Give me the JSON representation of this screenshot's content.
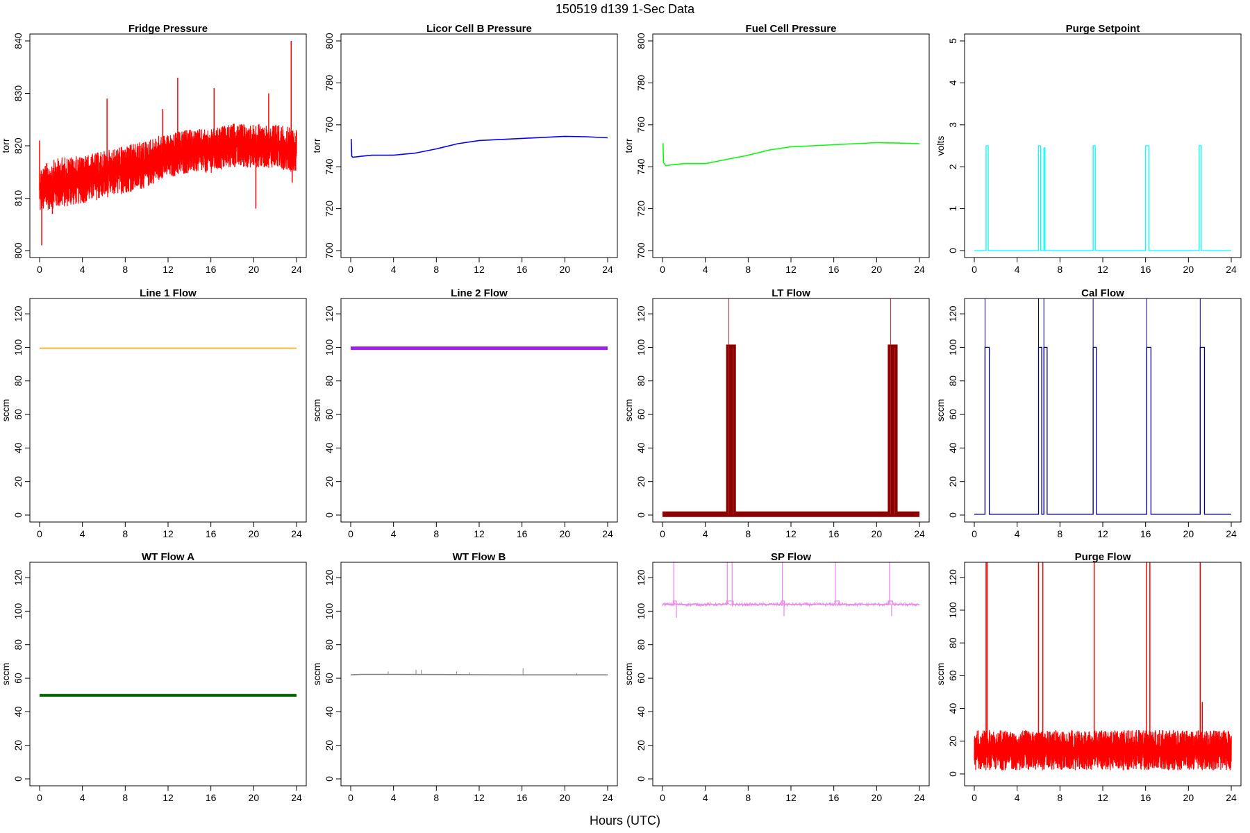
{
  "title": "150519   d139   1-Sec Data",
  "x_axis_label": "Hours (UTC)",
  "chart_data": [
    {
      "type": "line",
      "title": "Fridge Pressure",
      "ylabel": "torr",
      "color": "#ff0000",
      "xlim": [
        0,
        24
      ],
      "ylim": [
        800,
        840
      ],
      "yticks": [
        800,
        810,
        820,
        830,
        840
      ],
      "xticks": [
        0,
        4,
        8,
        12,
        16,
        20,
        24
      ],
      "series": [
        {
          "kind": "noisy_band",
          "x": [
            0,
            1,
            2,
            4,
            6,
            8,
            10,
            11.5,
            12,
            14,
            16,
            18,
            20,
            22,
            24
          ],
          "low": [
            805,
            806,
            806,
            807,
            808,
            809,
            810,
            812,
            812,
            813,
            813,
            814,
            814,
            814,
            813
          ],
          "high": [
            818,
            819,
            820,
            820,
            821,
            822,
            823,
            824,
            824,
            825,
            825,
            826,
            826,
            826,
            825
          ],
          "spikes": [
            [
              0,
              821
            ],
            [
              0.2,
              801
            ],
            [
              1.2,
              807
            ],
            [
              6.3,
              829
            ],
            [
              11.5,
              827
            ],
            [
              12.9,
              833
            ],
            [
              16.3,
              831
            ],
            [
              20.2,
              808
            ],
            [
              21.4,
              830
            ],
            [
              23.5,
              840
            ],
            [
              23.6,
              813
            ]
          ]
        }
      ]
    },
    {
      "type": "line",
      "title": "Licor Cell B Pressure",
      "ylabel": "torr",
      "color": "#0000ff",
      "xlim": [
        0,
        24
      ],
      "ylim": [
        700,
        800
      ],
      "yticks": [
        700,
        720,
        740,
        760,
        780,
        800
      ],
      "xticks": [
        0,
        4,
        8,
        12,
        16,
        20,
        24
      ],
      "series": [
        {
          "x": [
            0,
            0.05,
            0.1,
            0.2,
            1,
            2,
            4,
            6,
            8,
            10,
            12,
            14,
            16,
            18,
            20,
            22,
            24
          ],
          "y": [
            753,
            753,
            745,
            744.5,
            745,
            745.5,
            745.5,
            746.5,
            748.5,
            751,
            752.5,
            753,
            753.5,
            754,
            754.5,
            754.3,
            753.8
          ]
        }
      ]
    },
    {
      "type": "line",
      "title": "Fuel Cell Pressure",
      "ylabel": "torr",
      "color": "#00ff00",
      "xlim": [
        0,
        24
      ],
      "ylim": [
        700,
        800
      ],
      "yticks": [
        700,
        720,
        740,
        760,
        780,
        800
      ],
      "xticks": [
        0,
        4,
        8,
        12,
        16,
        20,
        24
      ],
      "series": [
        {
          "x": [
            0,
            0.05,
            0.1,
            0.3,
            1,
            2,
            4,
            6,
            8,
            10,
            12,
            14,
            16,
            18,
            20,
            22,
            24
          ],
          "y": [
            751,
            751,
            742,
            740.5,
            741,
            741.5,
            741.5,
            743.5,
            745.5,
            748,
            749.5,
            750,
            750.5,
            751,
            751.5,
            751.3,
            751
          ]
        }
      ]
    },
    {
      "type": "line",
      "title": "Purge Setpoint",
      "ylabel": "volts",
      "color": "#00ffff",
      "xlim": [
        0,
        24
      ],
      "ylim": [
        0,
        5
      ],
      "yticks": [
        0,
        1,
        2,
        3,
        4,
        5
      ],
      "xticks": [
        0,
        4,
        8,
        12,
        16,
        20,
        24
      ],
      "series": [
        {
          "baseline": 0,
          "pulses": [
            [
              1.1,
              1.3,
              2.5
            ],
            [
              6.0,
              6.2,
              2.5
            ],
            [
              6.5,
              6.6,
              2.45
            ],
            [
              11.1,
              11.3,
              2.5
            ],
            [
              16.0,
              16.3,
              2.5
            ],
            [
              21.0,
              21.2,
              2.5
            ]
          ]
        }
      ]
    },
    {
      "type": "line",
      "title": "Line 1 Flow",
      "ylabel": "sccm",
      "color": "#ffa500",
      "xlim": [
        0,
        24
      ],
      "ylim": [
        0,
        125
      ],
      "yticks": [
        0,
        20,
        40,
        60,
        80,
        100,
        120
      ],
      "xticks": [
        0,
        4,
        8,
        12,
        16,
        20,
        24
      ],
      "series": [
        {
          "x": [
            0,
            24
          ],
          "y": [
            99.5,
            99.5
          ]
        }
      ]
    },
    {
      "type": "line",
      "title": "Line 2 Flow",
      "ylabel": "sccm",
      "color": "#a020f0",
      "xlim": [
        0,
        24
      ],
      "ylim": [
        0,
        125
      ],
      "yticks": [
        0,
        20,
        40,
        60,
        80,
        100,
        120
      ],
      "xticks": [
        0,
        4,
        8,
        12,
        16,
        20,
        24
      ],
      "series": [
        {
          "x": [
            0,
            24
          ],
          "y": [
            99.5,
            99.5
          ]
        }
      ]
    },
    {
      "type": "line",
      "title": "LT Flow",
      "ylabel": "sccm",
      "color": "#8b0000",
      "xlim": [
        0,
        24
      ],
      "ylim": [
        0,
        125
      ],
      "yticks": [
        0,
        20,
        40,
        60,
        80,
        100,
        120
      ],
      "xticks": [
        0,
        4,
        8,
        12,
        16,
        20,
        24
      ],
      "series": [
        {
          "baseline": 0.5,
          "pulses": [
            [
              6.2,
              6.6,
              100
            ],
            [
              21.3,
              21.7,
              100
            ]
          ]
        }
      ]
    },
    {
      "type": "line",
      "title": "Cal Flow",
      "ylabel": "sccm",
      "color": "#00008b",
      "xlim": [
        0,
        24
      ],
      "ylim": [
        0,
        125
      ],
      "yticks": [
        0,
        20,
        40,
        60,
        80,
        100,
        120
      ],
      "xticks": [
        0,
        4,
        8,
        12,
        16,
        20,
        24
      ],
      "series": [
        {
          "baseline": 0.5,
          "pulses": [
            [
              1.0,
              1.4,
              100
            ],
            [
              6.0,
              6.3,
              100
            ],
            [
              6.5,
              6.8,
              100
            ],
            [
              11.1,
              11.4,
              100
            ],
            [
              16.1,
              16.5,
              100
            ],
            [
              21.1,
              21.5,
              100
            ]
          ]
        }
      ]
    },
    {
      "type": "line",
      "title": "WT Flow A",
      "ylabel": "sccm",
      "color": "#006400",
      "xlim": [
        0,
        24
      ],
      "ylim": [
        0,
        125
      ],
      "yticks": [
        0,
        20,
        40,
        60,
        80,
        100,
        120
      ],
      "xticks": [
        0,
        4,
        8,
        12,
        16,
        20,
        24
      ],
      "series": [
        {
          "x": [
            0,
            24
          ],
          "y": [
            49.8,
            49.8
          ]
        }
      ]
    },
    {
      "type": "line",
      "title": "WT Flow B",
      "ylabel": "sccm",
      "color": "#808080",
      "xlim": [
        0,
        24
      ],
      "ylim": [
        0,
        125
      ],
      "yticks": [
        0,
        20,
        40,
        60,
        80,
        100,
        120
      ],
      "xticks": [
        0,
        4,
        8,
        12,
        16,
        20,
        24
      ],
      "series": [
        {
          "x": [
            0,
            1,
            4,
            8,
            12,
            16,
            20,
            24
          ],
          "y": [
            62,
            62.3,
            62.3,
            62.2,
            62.1,
            62,
            62,
            62
          ],
          "spikes": [
            [
              3.5,
              64
            ],
            [
              6.1,
              65
            ],
            [
              6.6,
              65
            ],
            [
              9.9,
              64
            ],
            [
              11.1,
              63.5
            ],
            [
              16.1,
              66
            ],
            [
              21.1,
              63
            ]
          ]
        }
      ]
    },
    {
      "type": "line",
      "title": "SP Flow",
      "ylabel": "sccm",
      "color": "#ee82ee",
      "xlim": [
        0,
        24
      ],
      "ylim": [
        0,
        125
      ],
      "yticks": [
        0,
        20,
        40,
        60,
        80,
        100,
        120
      ],
      "xticks": [
        0,
        4,
        8,
        12,
        16,
        20,
        24
      ],
      "series": [
        {
          "baseline": 104,
          "pulses": [
            [
              1.0,
              1.3,
              106
            ],
            [
              6.0,
              6.6,
              106
            ],
            [
              11.1,
              11.4,
              106
            ],
            [
              16.1,
              16.5,
              106
            ],
            [
              21.1,
              21.5,
              106
            ]
          ],
          "spikes": [
            [
              1.05,
              130
            ],
            [
              6.05,
              130
            ],
            [
              6.5,
              130
            ],
            [
              11.2,
              130
            ],
            [
              16.15,
              130
            ],
            [
              21.2,
              130
            ],
            [
              1.3,
              96
            ],
            [
              11.35,
              97
            ],
            [
              21.4,
              97
            ]
          ]
        }
      ]
    },
    {
      "type": "line",
      "title": "Purge Flow",
      "ylabel": "sccm",
      "color": "#ff0000",
      "xlim": [
        0,
        24
      ],
      "ylim": [
        -3,
        125
      ],
      "yticks": [
        0,
        20,
        40,
        60,
        80,
        100,
        120
      ],
      "xticks": [
        0,
        4,
        8,
        12,
        16,
        20,
        24
      ],
      "series": [
        {
          "kind": "noisy_band",
          "x": [
            0,
            24
          ],
          "low": [
            -3,
            -3
          ],
          "high": [
            32,
            32
          ],
          "spikes": [
            [
              1.1,
              130
            ],
            [
              1.2,
              130
            ],
            [
              6.0,
              130
            ],
            [
              6.4,
              130
            ],
            [
              11.2,
              130
            ],
            [
              16.1,
              130
            ],
            [
              16.4,
              130
            ],
            [
              21.1,
              130
            ],
            [
              21.3,
              44
            ]
          ]
        }
      ]
    }
  ]
}
